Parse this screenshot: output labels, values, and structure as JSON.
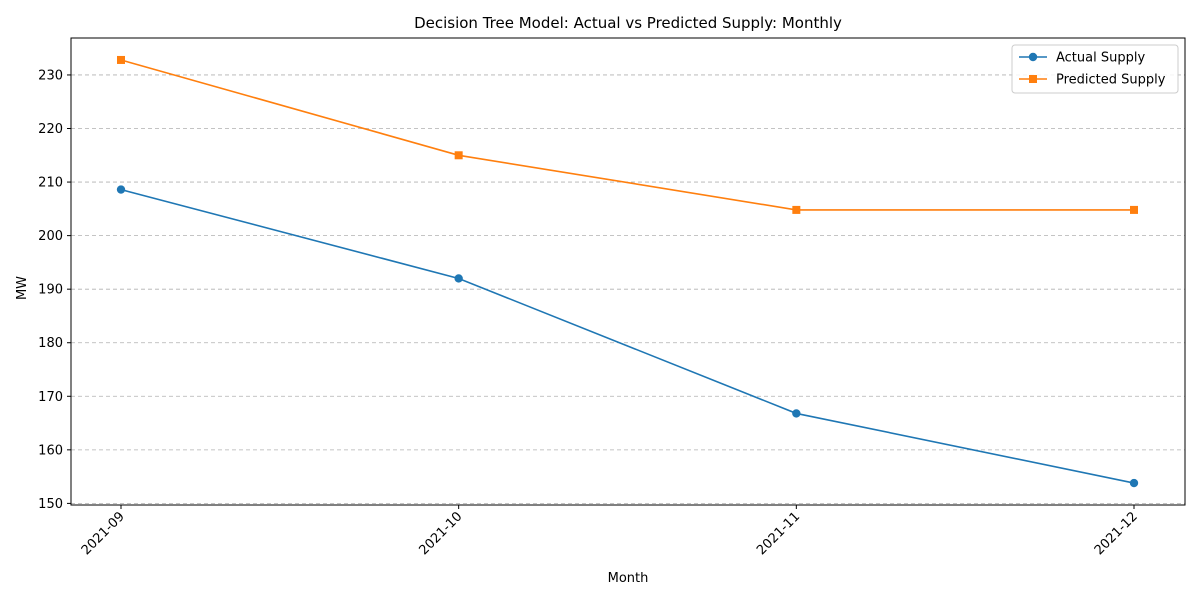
{
  "chart_data": {
    "type": "line",
    "title": "Decision Tree Model: Actual vs Predicted Supply: Monthly",
    "xlabel": "Month",
    "ylabel": "MW",
    "categories": [
      "2021-09",
      "2021-10",
      "2021-11",
      "2021-12"
    ],
    "series": [
      {
        "name": "Actual Supply",
        "values": [
          208.6,
          192.0,
          166.8,
          153.8
        ],
        "color": "#1f77b4",
        "marker": "circle"
      },
      {
        "name": "Predicted Supply",
        "values": [
          232.8,
          215.0,
          204.8,
          204.8
        ],
        "color": "#ff7f0e",
        "marker": "square"
      }
    ],
    "ylim": [
      149.7,
      236.9
    ],
    "yticks": [
      150,
      160,
      170,
      180,
      190,
      200,
      210,
      220,
      230
    ],
    "grid": "y-dashed",
    "legend": "top-right"
  }
}
